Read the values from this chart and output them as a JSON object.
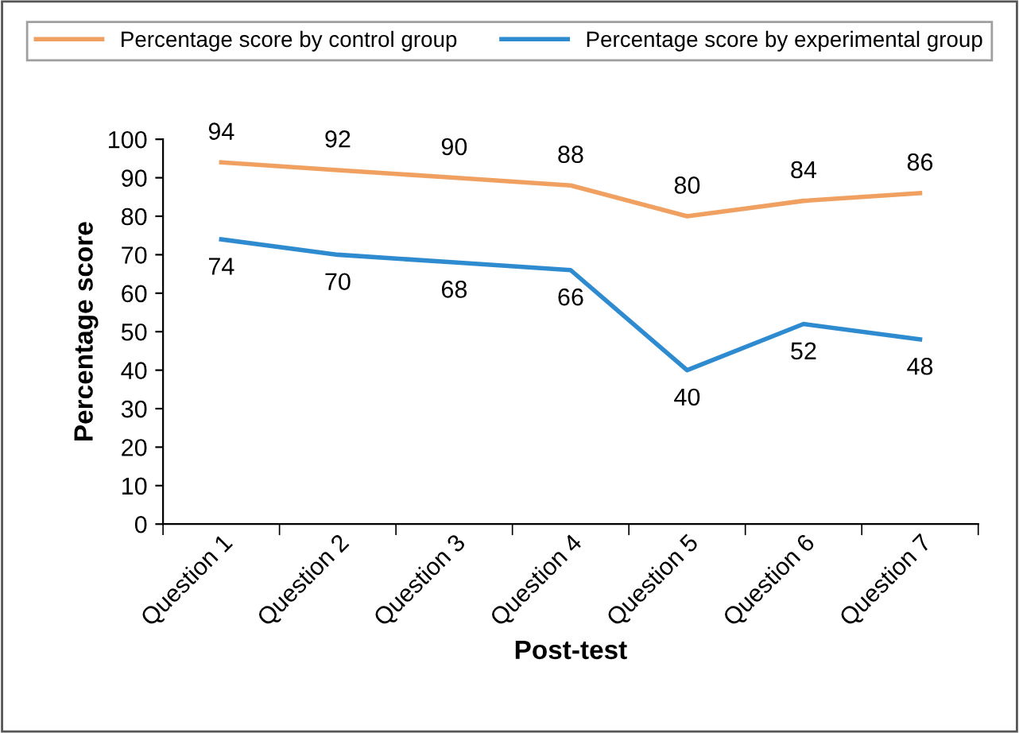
{
  "chart_data": {
    "type": "line",
    "xlabel": "Post-test",
    "ylabel": "Percentage score",
    "categories": [
      "Question 1",
      "Question 2",
      "Question 3",
      "Question 4",
      "Question 5",
      "Question 6",
      "Question 7"
    ],
    "series": [
      {
        "name": "Percentage score by control group",
        "color": "#f0a060",
        "values": [
          94,
          92,
          90,
          88,
          80,
          84,
          86
        ]
      },
      {
        "name": "Percentage score by experimental group",
        "color": "#2e8bd0",
        "values": [
          74,
          70,
          68,
          66,
          40,
          52,
          48
        ]
      }
    ],
    "ylim": [
      0,
      100
    ],
    "yticks": [
      0,
      10,
      20,
      30,
      40,
      50,
      60,
      70,
      80,
      90,
      100
    ],
    "data_labels": true,
    "legend": "top",
    "grid": false,
    "marker": "none",
    "line_style": "solid"
  }
}
